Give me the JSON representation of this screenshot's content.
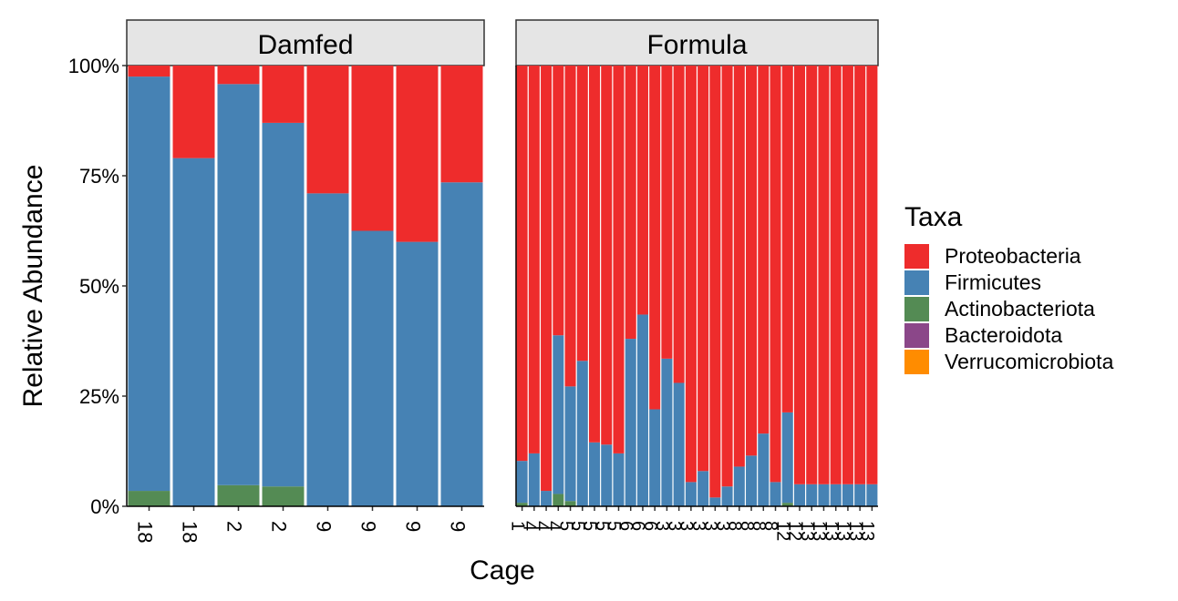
{
  "chart_data": {
    "type": "bar",
    "stacked": true,
    "xlabel": "Cage",
    "ylabel": "Relative Abundance",
    "ylim": [
      0,
      1
    ],
    "yticks": [
      "0%",
      "25%",
      "50%",
      "75%",
      "100%"
    ],
    "legend_title": "Taxa",
    "legend_position": "right",
    "series": [
      {
        "name": "Proteobacteria",
        "color": "#EE2C2C"
      },
      {
        "name": "Firmicutes",
        "color": "#4682B4"
      },
      {
        "name": "Actinobacteriota",
        "color": "#548B54"
      },
      {
        "name": "Bacteroidota",
        "color": "#8B4789"
      },
      {
        "name": "Verrucomicrobiota",
        "color": "#FF8C00"
      }
    ],
    "panels": [
      {
        "title": "Damfed",
        "categories": [
          "18",
          "18",
          "2",
          "2",
          "9",
          "9",
          "9",
          "9"
        ],
        "values": {
          "Firmicutes": [
            0.94,
            0.79,
            0.91,
            0.825,
            0.71,
            0.625,
            0.6,
            0.735
          ],
          "Actinobacteriota": [
            0.035,
            0.0,
            0.048,
            0.045,
            0.0,
            0.0,
            0.0,
            0.0
          ],
          "Bacteroidota": [
            0,
            0,
            0,
            0,
            0,
            0,
            0,
            0
          ],
          "Verrucomicrobiota": [
            0,
            0,
            0,
            0,
            0,
            0,
            0,
            0
          ],
          "Proteobacteria": [
            0.025,
            0.21,
            0.042,
            0.13,
            0.29,
            0.375,
            0.4,
            0.265
          ]
        }
      },
      {
        "title": "Formula",
        "categories": [
          "1",
          "4",
          "4",
          "4",
          "5",
          "5",
          "5",
          "5",
          "5",
          "6",
          "6",
          "6",
          "3",
          "3",
          "3",
          "3",
          "3",
          "3",
          "8",
          "8",
          "8",
          "8",
          "12",
          "12",
          "13",
          "13",
          "13",
          "13",
          "13",
          "13"
        ],
        "values": {
          "Firmicutes": [
            0.095,
            0.12,
            0.035,
            0.36,
            0.26,
            0.33,
            0.145,
            0.14,
            0.12,
            0.38,
            0.435,
            0.22,
            0.335,
            0.28,
            0.055,
            0.08,
            0.02,
            0.045,
            0.09,
            0.115,
            0.165,
            0.055,
            0.205,
            0.05,
            0.05,
            0.05,
            0.05,
            0.05,
            0.05,
            0.05
          ],
          "Actinobacteriota": [
            0.008,
            0.0,
            0.0,
            0.028,
            0.012,
            0.0,
            0.0,
            0.0,
            0.0,
            0.0,
            0.0,
            0.0,
            0.0,
            0.0,
            0.0,
            0.0,
            0.0,
            0.0,
            0.0,
            0.0,
            0.0,
            0.0,
            0.008,
            0.0,
            0.0,
            0.0,
            0.0,
            0.0,
            0.0,
            0.0
          ],
          "Bacteroidota": [
            0,
            0,
            0,
            0,
            0,
            0,
            0,
            0,
            0,
            0,
            0,
            0,
            0,
            0,
            0,
            0,
            0,
            0,
            0,
            0,
            0,
            0,
            0,
            0,
            0,
            0,
            0,
            0,
            0,
            0
          ],
          "Verrucomicrobiota": [
            0,
            0,
            0,
            0,
            0,
            0,
            0,
            0,
            0,
            0,
            0,
            0,
            0,
            0,
            0,
            0,
            0,
            0,
            0,
            0,
            0,
            0,
            0,
            0,
            0,
            0,
            0,
            0,
            0,
            0
          ],
          "Proteobacteria": [
            0.897,
            0.88,
            0.965,
            0.612,
            0.728,
            0.67,
            0.855,
            0.86,
            0.88,
            0.62,
            0.565,
            0.78,
            0.665,
            0.72,
            0.945,
            0.92,
            0.98,
            0.955,
            0.91,
            0.885,
            0.835,
            0.945,
            0.787,
            0.95,
            0.95,
            0.95,
            0.95,
            0.95,
            0.95,
            0.95
          ]
        }
      }
    ]
  }
}
